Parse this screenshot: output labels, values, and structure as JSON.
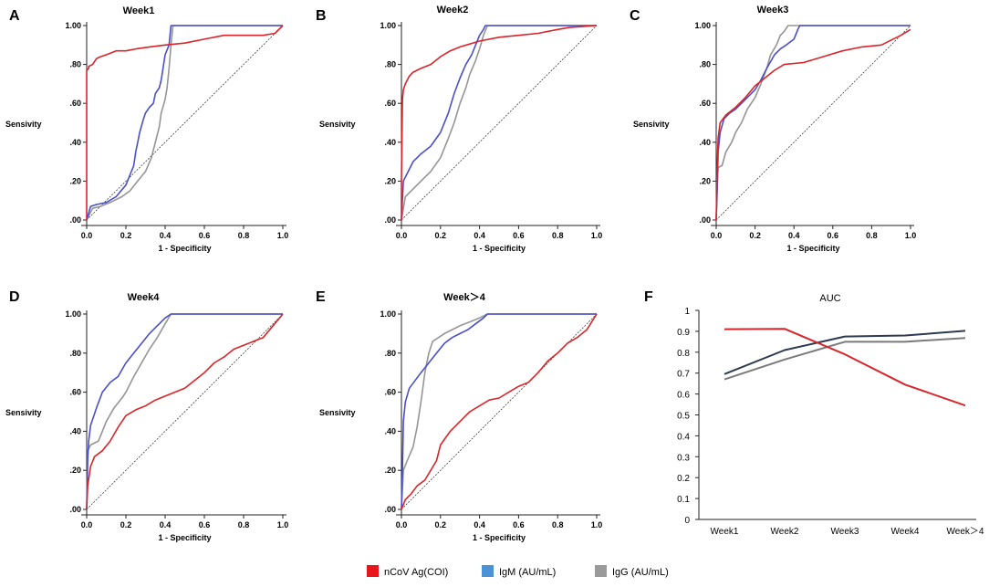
{
  "colors": {
    "ag": "#d9252a",
    "igm": "#4a4fc8",
    "igg": "#959595",
    "auc_igm": "#2d3a4f",
    "auc_igg": "#7a7a7a",
    "legend_ag": "#e8151b",
    "legend_igm": "#4b91d6",
    "legend_igg": "#9a9a9a"
  },
  "chart_data": [
    {
      "type": "line",
      "panel": "A",
      "title": "Week1",
      "xlabel": "1 - Specificity",
      "ylabel": "Sensivity",
      "xlim": [
        0,
        1
      ],
      "ylim": [
        0,
        1
      ],
      "xticks": [
        "0.0",
        "0.2",
        "0.4",
        "0.6",
        "0.8",
        "1.0"
      ],
      "yticks": [
        ".00",
        ".20",
        ".40",
        ".60",
        ".80",
        "1.00"
      ],
      "series": [
        {
          "name": "nCoV Ag(COI)",
          "key": "ag",
          "x": [
            0,
            0,
            0.01,
            0.01,
            0.03,
            0.05,
            0.07,
            0.1,
            0.15,
            0.2,
            0.25,
            0.32,
            0.4,
            0.5,
            0.6,
            0.7,
            0.8,
            0.9,
            0.96,
            1.0
          ],
          "y": [
            0,
            0.77,
            0.78,
            0.79,
            0.8,
            0.83,
            0.84,
            0.85,
            0.87,
            0.87,
            0.88,
            0.89,
            0.9,
            0.91,
            0.93,
            0.95,
            0.95,
            0.95,
            0.96,
            1.0
          ]
        },
        {
          "name": "IgM (AU/mL)",
          "key": "igm",
          "x": [
            0,
            0.02,
            0.05,
            0.1,
            0.15,
            0.2,
            0.22,
            0.24,
            0.25,
            0.27,
            0.29,
            0.3,
            0.32,
            0.34,
            0.35,
            0.37,
            0.38,
            0.4,
            0.42,
            0.43,
            1.0
          ],
          "y": [
            0,
            0.07,
            0.08,
            0.09,
            0.12,
            0.18,
            0.23,
            0.28,
            0.35,
            0.45,
            0.52,
            0.55,
            0.58,
            0.6,
            0.65,
            0.68,
            0.72,
            0.85,
            0.9,
            1.0,
            1.0
          ]
        },
        {
          "name": "IgG (AU/mL)",
          "key": "igg",
          "x": [
            0,
            0.03,
            0.07,
            0.12,
            0.18,
            0.22,
            0.26,
            0.3,
            0.33,
            0.35,
            0.37,
            0.38,
            0.4,
            0.41,
            0.42,
            0.43,
            0.44,
            1.0
          ],
          "y": [
            0,
            0.06,
            0.07,
            0.09,
            0.12,
            0.15,
            0.2,
            0.25,
            0.32,
            0.4,
            0.48,
            0.55,
            0.62,
            0.68,
            0.78,
            0.9,
            1.0,
            1.0
          ]
        }
      ]
    },
    {
      "type": "line",
      "panel": "B",
      "title": "Week2",
      "xlabel": "1 - Specificity",
      "ylabel": "Sensivity",
      "xlim": [
        0,
        1
      ],
      "ylim": [
        0,
        1
      ],
      "xticks": [
        "0.0",
        "0.2",
        "0.4",
        "0.6",
        "0.8",
        "1.0"
      ],
      "yticks": [
        ".00",
        ".20",
        ".40",
        ".60",
        ".80",
        "1.00"
      ],
      "series": [
        {
          "name": "nCoV Ag(COI)",
          "key": "ag",
          "x": [
            0,
            0,
            0.005,
            0.01,
            0.02,
            0.04,
            0.06,
            0.1,
            0.15,
            0.2,
            0.25,
            0.3,
            0.4,
            0.5,
            0.6,
            0.7,
            0.8,
            0.86,
            1.0
          ],
          "y": [
            0,
            0.2,
            0.62,
            0.67,
            0.7,
            0.74,
            0.76,
            0.78,
            0.8,
            0.84,
            0.87,
            0.89,
            0.92,
            0.94,
            0.95,
            0.96,
            0.98,
            0.99,
            1.0
          ]
        },
        {
          "name": "IgM (AU/mL)",
          "key": "igm",
          "x": [
            0,
            0.01,
            0.03,
            0.06,
            0.1,
            0.15,
            0.2,
            0.24,
            0.27,
            0.3,
            0.33,
            0.36,
            0.38,
            0.4,
            0.42,
            0.43,
            1.0
          ],
          "y": [
            0,
            0.2,
            0.24,
            0.3,
            0.34,
            0.38,
            0.45,
            0.55,
            0.65,
            0.73,
            0.8,
            0.85,
            0.9,
            0.95,
            0.98,
            1.0,
            1.0
          ]
        },
        {
          "name": "IgG (AU/mL)",
          "key": "igg",
          "x": [
            0,
            0.02,
            0.05,
            0.1,
            0.15,
            0.2,
            0.24,
            0.27,
            0.3,
            0.33,
            0.35,
            0.38,
            0.4,
            0.42,
            0.44,
            1.0
          ],
          "y": [
            0,
            0.12,
            0.15,
            0.2,
            0.25,
            0.32,
            0.42,
            0.5,
            0.6,
            0.68,
            0.75,
            0.82,
            0.88,
            0.95,
            1.0,
            1.0
          ]
        }
      ]
    },
    {
      "type": "line",
      "panel": "C",
      "title": "Week3",
      "xlabel": "1 - Specificity",
      "ylabel": "Sensivity",
      "xlim": [
        0,
        1
      ],
      "ylim": [
        0,
        1
      ],
      "xticks": [
        "0.0",
        "0.2",
        "0.4",
        "0.6",
        "0.8",
        "1.0"
      ],
      "yticks": [
        ".00",
        ".20",
        ".40",
        ".60",
        ".80",
        "1.00"
      ],
      "series": [
        {
          "name": "nCoV Ag(COI)",
          "key": "ag",
          "x": [
            0,
            0.005,
            0.01,
            0.02,
            0.05,
            0.1,
            0.15,
            0.2,
            0.25,
            0.3,
            0.35,
            0.45,
            0.55,
            0.65,
            0.75,
            0.85,
            0.95,
            1.0
          ],
          "y": [
            0,
            0.28,
            0.42,
            0.5,
            0.54,
            0.58,
            0.63,
            0.69,
            0.73,
            0.77,
            0.8,
            0.81,
            0.84,
            0.87,
            0.89,
            0.9,
            0.95,
            0.98
          ]
        },
        {
          "name": "IgM (AU/mL)",
          "key": "igm",
          "x": [
            0,
            0.005,
            0.01,
            0.02,
            0.04,
            0.07,
            0.1,
            0.13,
            0.16,
            0.2,
            0.23,
            0.26,
            0.3,
            0.33,
            0.36,
            0.4,
            0.42,
            0.43,
            1.0
          ],
          "y": [
            0,
            0.15,
            0.35,
            0.45,
            0.52,
            0.55,
            0.57,
            0.6,
            0.63,
            0.67,
            0.72,
            0.78,
            0.85,
            0.88,
            0.9,
            0.93,
            0.98,
            1.0,
            1.0
          ]
        },
        {
          "name": "IgG (AU/mL)",
          "key": "igg",
          "x": [
            0,
            0.005,
            0.01,
            0.03,
            0.05,
            0.08,
            0.1,
            0.13,
            0.16,
            0.2,
            0.23,
            0.26,
            0.28,
            0.31,
            0.33,
            0.35,
            0.37,
            0.38,
            1.0
          ],
          "y": [
            0,
            0.2,
            0.27,
            0.28,
            0.35,
            0.4,
            0.45,
            0.5,
            0.57,
            0.63,
            0.7,
            0.78,
            0.85,
            0.9,
            0.95,
            0.97,
            1.0,
            1.0,
            1.0
          ]
        }
      ]
    },
    {
      "type": "line",
      "panel": "D",
      "title": "Week4",
      "xlabel": "1 - Specificity",
      "ylabel": "Sensivity",
      "xlim": [
        0,
        1
      ],
      "ylim": [
        0,
        1
      ],
      "xticks": [
        "0.0",
        "0.2",
        "0.4",
        "0.6",
        "0.8",
        "1.0"
      ],
      "yticks": [
        ".00",
        ".20",
        ".40",
        ".60",
        ".80",
        "1.00"
      ],
      "series": [
        {
          "name": "nCoV Ag(COI)",
          "key": "ag",
          "x": [
            0,
            0.005,
            0.02,
            0.04,
            0.08,
            0.12,
            0.16,
            0.2,
            0.25,
            0.3,
            0.35,
            0.4,
            0.5,
            0.55,
            0.6,
            0.65,
            0.7,
            0.75,
            0.8,
            0.9,
            1.0
          ],
          "y": [
            0,
            0.12,
            0.22,
            0.27,
            0.3,
            0.35,
            0.42,
            0.48,
            0.51,
            0.53,
            0.56,
            0.58,
            0.62,
            0.66,
            0.7,
            0.75,
            0.78,
            0.82,
            0.84,
            0.88,
            1.0
          ]
        },
        {
          "name": "IgM (AU/mL)",
          "key": "igm",
          "x": [
            0,
            0.005,
            0.01,
            0.02,
            0.05,
            0.08,
            0.12,
            0.16,
            0.2,
            0.24,
            0.28,
            0.32,
            0.36,
            0.4,
            0.43,
            1.0
          ],
          "y": [
            0,
            0.25,
            0.35,
            0.43,
            0.52,
            0.6,
            0.65,
            0.68,
            0.75,
            0.8,
            0.85,
            0.9,
            0.94,
            0.98,
            1.0,
            1.0
          ]
        },
        {
          "name": "IgG (AU/mL)",
          "key": "igg",
          "x": [
            0,
            0.005,
            0.02,
            0.06,
            0.1,
            0.14,
            0.18,
            0.2,
            0.24,
            0.28,
            0.32,
            0.36,
            0.4,
            0.43,
            1.0
          ],
          "y": [
            0,
            0.3,
            0.33,
            0.35,
            0.45,
            0.52,
            0.57,
            0.6,
            0.68,
            0.75,
            0.82,
            0.88,
            0.95,
            1.0,
            1.0
          ]
        }
      ]
    },
    {
      "type": "line",
      "panel": "E",
      "title": "Week＞4",
      "xlabel": "1 - Specificity",
      "ylabel": "Sensivity",
      "xlim": [
        0,
        1
      ],
      "ylim": [
        0,
        1
      ],
      "xticks": [
        "0.0",
        "0.2",
        "0.4",
        "0.6",
        "0.8",
        "1.0"
      ],
      "yticks": [
        ".00",
        ".20",
        ".40",
        ".60",
        ".80",
        "1.00"
      ],
      "series": [
        {
          "name": "nCoV Ag(COI)",
          "key": "ag",
          "x": [
            0,
            0.02,
            0.05,
            0.08,
            0.12,
            0.15,
            0.18,
            0.2,
            0.25,
            0.3,
            0.35,
            0.4,
            0.45,
            0.5,
            0.55,
            0.6,
            0.65,
            0.7,
            0.75,
            0.8,
            0.85,
            0.9,
            0.95,
            1.0
          ],
          "y": [
            0,
            0.05,
            0.08,
            0.12,
            0.15,
            0.2,
            0.25,
            0.33,
            0.4,
            0.45,
            0.5,
            0.53,
            0.56,
            0.57,
            0.6,
            0.63,
            0.65,
            0.7,
            0.76,
            0.8,
            0.85,
            0.88,
            0.92,
            1.0
          ]
        },
        {
          "name": "IgM (AU/mL)",
          "key": "igm",
          "x": [
            0,
            0.005,
            0.01,
            0.02,
            0.04,
            0.07,
            0.1,
            0.14,
            0.18,
            0.22,
            0.26,
            0.3,
            0.34,
            0.38,
            0.42,
            0.44,
            1.0
          ],
          "y": [
            0,
            0.2,
            0.45,
            0.55,
            0.62,
            0.66,
            0.7,
            0.75,
            0.8,
            0.85,
            0.88,
            0.9,
            0.92,
            0.95,
            0.98,
            1.0,
            1.0
          ]
        },
        {
          "name": "IgG (AU/mL)",
          "key": "igg",
          "x": [
            0,
            0.01,
            0.03,
            0.06,
            0.08,
            0.1,
            0.12,
            0.14,
            0.16,
            0.19,
            0.22,
            0.26,
            0.3,
            0.35,
            0.4,
            0.44,
            1.0
          ],
          "y": [
            0,
            0.2,
            0.25,
            0.32,
            0.42,
            0.55,
            0.7,
            0.8,
            0.86,
            0.88,
            0.9,
            0.92,
            0.94,
            0.96,
            0.98,
            1.0,
            1.0
          ]
        }
      ]
    },
    {
      "type": "line",
      "panel": "F",
      "title": "AUC",
      "categories": [
        "Week1",
        "Week2",
        "Week3",
        "Week4",
        "Week＞4"
      ],
      "ylim": [
        0,
        1
      ],
      "yticks": [
        "0",
        "0.1",
        "0.2",
        "0.3",
        "0.4",
        "0.5",
        "0.6",
        "0.7",
        "0.8",
        "0.9",
        "1"
      ],
      "series": [
        {
          "name": "nCoV Ag(COI)",
          "key": "ag",
          "values": [
            0.91,
            0.912,
            0.79,
            0.645,
            0.545
          ]
        },
        {
          "name": "IgM (AU/mL)",
          "key": "auc_igm",
          "values": [
            0.695,
            0.81,
            0.875,
            0.88,
            0.902
          ]
        },
        {
          "name": "IgG (AU/mL)",
          "key": "auc_igg",
          "values": [
            0.67,
            0.765,
            0.85,
            0.85,
            0.868
          ]
        }
      ]
    }
  ],
  "legend": [
    {
      "label": "nCoV Ag(COI)",
      "key": "legend_ag"
    },
    {
      "label": "IgM (AU/mL)",
      "key": "legend_igm"
    },
    {
      "label": "IgG (AU/mL)",
      "key": "legend_igg"
    }
  ]
}
